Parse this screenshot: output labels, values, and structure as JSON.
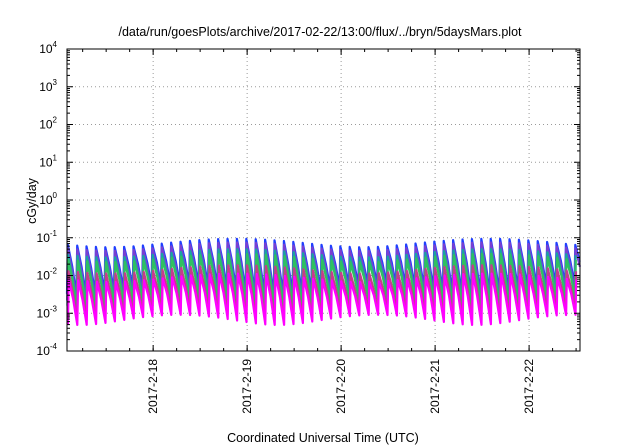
{
  "chart_data": {
    "type": "line",
    "title": "/data/run/goesPlots/archive/2017-02-22/13:00/flux/../bryn/5daysMars.plot",
    "xlabel": "Coordinated Universal Time (UTC)",
    "ylabel": "cGy/day",
    "yscale": "log",
    "ylim": [
      0.0001,
      10000
    ],
    "y_ticks": [
      {
        "base": "10",
        "exp": "-4"
      },
      {
        "base": "10",
        "exp": "-3"
      },
      {
        "base": "10",
        "exp": "-2"
      },
      {
        "base": "10",
        "exp": "-1"
      },
      {
        "base": "10",
        "exp": "0"
      },
      {
        "base": "10",
        "exp": "1"
      },
      {
        "base": "10",
        "exp": "2"
      },
      {
        "base": "10",
        "exp": "3"
      },
      {
        "base": "10",
        "exp": "4"
      }
    ],
    "xlim": [
      "2017-02-17 02:00",
      "2017-02-22 13:00"
    ],
    "x_ticks": [
      "2017-2-18",
      "2017-2-19",
      "2017-2-20",
      "2017-2-21",
      "2017-2-22"
    ],
    "grid": true,
    "legend": "none",
    "series_shape": "periodic sawtooth, period about 2.4 hours, sharp rise followed by decay",
    "series": [
      {
        "color": "#1f3fff",
        "peak": 0.075,
        "trough": 0.0045
      },
      {
        "color": "#7a3fd0",
        "peak": 0.06,
        "trough": 0.003
      },
      {
        "color": "#1aa3a3",
        "peak": 0.04,
        "trough": 0.0022
      },
      {
        "color": "#30c060",
        "peak": 0.03,
        "trough": 0.0018
      },
      {
        "color": "#c53c8c",
        "peak": 0.015,
        "trough": 0.0009
      },
      {
        "color": "#ff00ff",
        "peak": 0.009,
        "trough": 0.0007
      }
    ]
  }
}
